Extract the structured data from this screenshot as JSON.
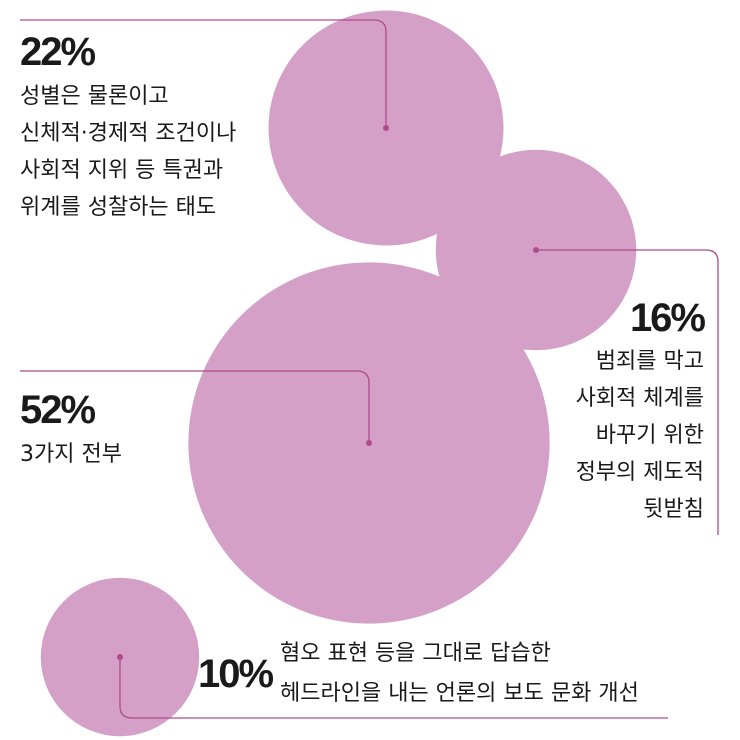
{
  "chart_data": {
    "type": "bubble",
    "colors": {
      "bubble": "#d5a0c8",
      "leader": "#b04a8c",
      "text": "#1a1a1a"
    },
    "items": [
      {
        "percent": "22%",
        "value": 22,
        "lines": [
          "성별은 물론이고",
          "신체적·경제적 조건이나",
          "사회적 지위 등 특권과",
          "위계를 성찰하는 태도"
        ]
      },
      {
        "percent": "16%",
        "value": 16,
        "lines": [
          "범죄를 막고",
          "사회적 체계를",
          "바꾸기 위한",
          "정부의 제도적",
          "뒷받침"
        ]
      },
      {
        "percent": "52%",
        "value": 52,
        "lines": [
          "3가지 전부"
        ]
      },
      {
        "percent": "10%",
        "value": 10,
        "lines": [
          "혐오 표현 등을 그대로 답습한",
          "헤드라인을 내는 언론의 보도 문화 개선"
        ]
      }
    ]
  }
}
